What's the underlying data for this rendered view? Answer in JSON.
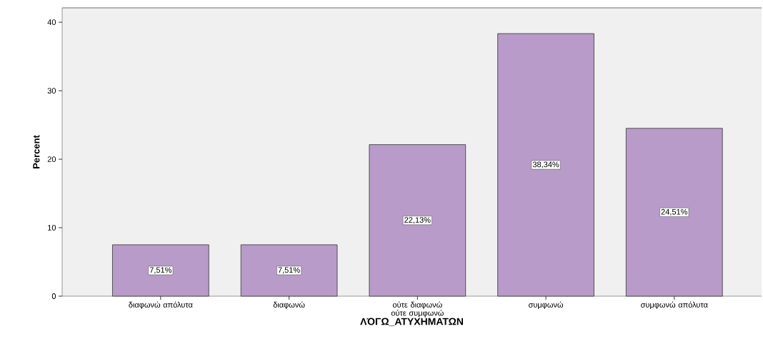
{
  "chart_data": {
    "type": "bar",
    "xlabel": "ΛΌΓΩ_ΑΤΥΧΗΜΑΤΩΝ",
    "ylabel": "Percent",
    "categories": [
      "διαφωνώ απόλυτα",
      "διαφωνώ",
      "ούτε διαφωνώ ούτε συμφωνώ",
      "συμφωνώ",
      "συμφωνώ απόλυτα"
    ],
    "values": [
      7.51,
      7.51,
      22.13,
      38.34,
      24.51
    ],
    "value_labels": [
      "7,51%",
      "7,51%",
      "22,13%",
      "38,34%",
      "24,51%"
    ],
    "color": "#b89bc9",
    "ylim": [
      0,
      42.1
    ],
    "yticks": [
      0,
      10,
      20,
      30,
      40
    ]
  }
}
